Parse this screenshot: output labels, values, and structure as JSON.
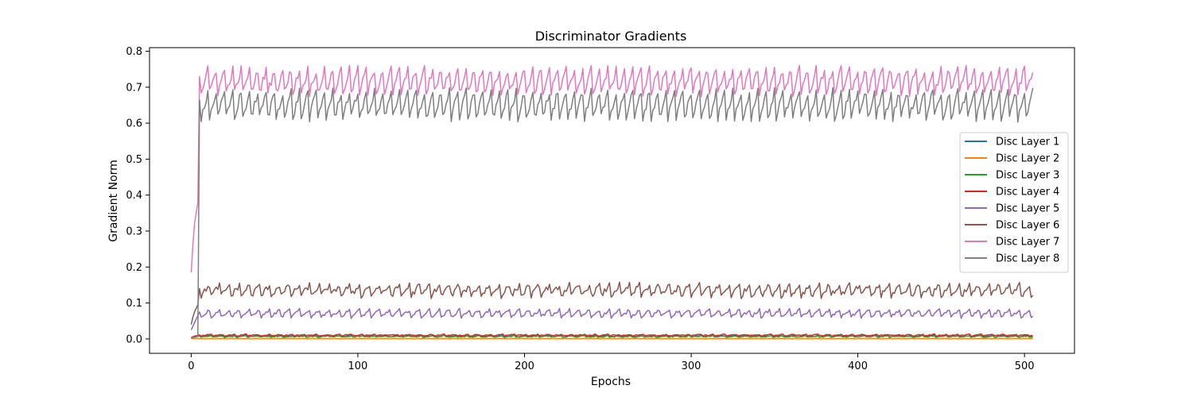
{
  "chart_data": {
    "type": "line",
    "title": "Discriminator Gradients",
    "xlabel": "Epochs",
    "ylabel": "Gradient Norm",
    "xlim": [
      -25,
      530
    ],
    "ylim": [
      -0.04,
      0.81
    ],
    "xticks": [
      0,
      100,
      200,
      300,
      400,
      500
    ],
    "yticks": [
      0.0,
      0.1,
      0.2,
      0.3,
      0.4,
      0.5,
      0.6,
      0.7,
      0.8
    ],
    "xtick_labels": [
      "0",
      "100",
      "200",
      "300",
      "400",
      "500"
    ],
    "ytick_labels": [
      "0.0",
      "0.1",
      "0.2",
      "0.3",
      "0.4",
      "0.5",
      "0.6",
      "0.7",
      "0.8"
    ],
    "grid": false,
    "legend_position": "center-right",
    "x_start": 0,
    "x_end": 505,
    "series": [
      {
        "name": "Disc Layer 1",
        "color": "#1f77b4",
        "initial": [
          0.003,
          0.005,
          0.006,
          0.007,
          0.008,
          0.009
        ],
        "base": 0.008,
        "amplitude": 0.002,
        "period": 7,
        "noise": 0.0015
      },
      {
        "name": "Disc Layer 2",
        "color": "#ff7f0e",
        "initial": [
          0.001,
          0.001,
          0.001,
          0.001,
          0.001,
          0.001
        ],
        "base": 0.001,
        "amplitude": 0.0003,
        "period": 7,
        "noise": 0.0002
      },
      {
        "name": "Disc Layer 3",
        "color": "#2ca02c",
        "initial": [
          0.002,
          0.004,
          0.005,
          0.006,
          0.007,
          0.008
        ],
        "base": 0.007,
        "amplitude": 0.002,
        "period": 7,
        "noise": 0.0015
      },
      {
        "name": "Disc Layer 4",
        "color": "#d62728",
        "initial": [
          0.004,
          0.006,
          0.008,
          0.009,
          0.01,
          0.011
        ],
        "base": 0.011,
        "amplitude": 0.002,
        "period": 7,
        "noise": 0.0015
      },
      {
        "name": "Disc Layer 5",
        "color": "#9467bd",
        "initial": [
          0.025,
          0.035,
          0.045,
          0.055,
          0.065,
          0.075
        ],
        "base": 0.073,
        "amplitude": 0.012,
        "period": 6,
        "noise": 0.004
      },
      {
        "name": "Disc Layer 6",
        "color": "#8c564b",
        "initial": [
          0.04,
          0.06,
          0.075,
          0.085,
          0.095,
          0.14
        ],
        "base": 0.138,
        "amplitude": 0.018,
        "period": 6,
        "noise": 0.008
      },
      {
        "name": "Disc Layer 7",
        "color": "#e377c2",
        "initial": [
          0.185,
          0.26,
          0.32,
          0.35,
          0.38,
          0.73
        ],
        "base": 0.725,
        "amplitude": 0.04,
        "period": 5,
        "noise": 0.012
      },
      {
        "name": "Disc Layer 8",
        "color": "#7f7f7f",
        "initial": [
          0.003,
          0.004,
          0.005,
          0.006,
          0.007,
          0.665
        ],
        "base": 0.66,
        "amplitude": 0.045,
        "period": 5,
        "noise": 0.012
      }
    ]
  }
}
